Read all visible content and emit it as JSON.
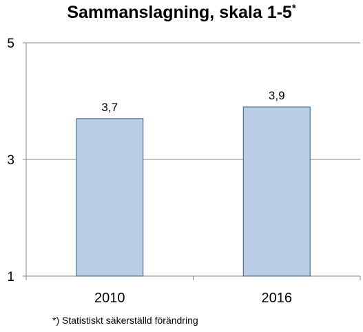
{
  "title": "Sammanslagning, skala 1-5",
  "title_marker": "*",
  "footnote": "*) Statistiskt säkerställd förändring",
  "chart_data": {
    "type": "bar",
    "title": "Sammanslagning, skala 1-5*",
    "categories": [
      "2010",
      "2016"
    ],
    "values": [
      3.7,
      3.9
    ],
    "value_labels": [
      "3,7",
      "3,9"
    ],
    "yticks": [
      "1",
      "3",
      "5"
    ],
    "ylim": [
      1,
      5
    ],
    "xlabel": "",
    "ylabel": "",
    "grid": true,
    "bar_color": "#b9cde5",
    "bar_edge_color": "#385d8a",
    "grid_color": "#868686"
  }
}
